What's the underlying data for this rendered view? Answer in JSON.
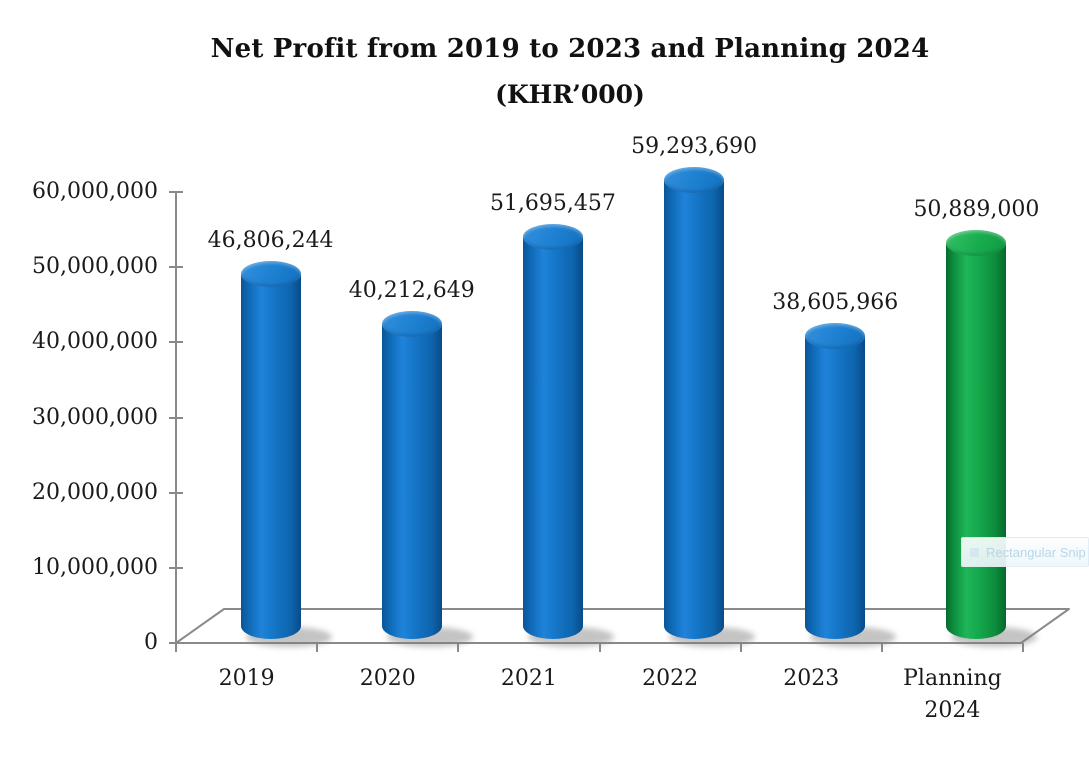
{
  "title": {
    "line1": "Net Profit from 2019 to 2023 and Planning 2024",
    "line2": "(KHR’000)"
  },
  "overlay": {
    "tooltip_label": "Rectangular Snip"
  },
  "colors": {
    "bar_blue": "#1272bf",
    "bar_green": "#13a348",
    "axis_gray": "#8a8a8a",
    "label_text": "#1a1a1a"
  },
  "chart_data": {
    "type": "bar",
    "subtype": "3d-cylinder",
    "title": "Net Profit from 2019 to 2023 and Planning 2024 (KHR’000)",
    "categories": [
      "2019",
      "2020",
      "2021",
      "2022",
      "2023",
      "Planning 2024"
    ],
    "values": [
      46806244,
      40212649,
      51695457,
      59293690,
      38605966,
      50889000
    ],
    "data_labels": [
      "46,806,244",
      "40,212,649",
      "51,695,457",
      "59,293,690",
      "38,605,966",
      "50,889,000"
    ],
    "bar_color_keys": [
      "blue",
      "blue",
      "blue",
      "blue",
      "blue",
      "green"
    ],
    "xlabel": "",
    "ylabel": "",
    "ylim": [
      0,
      60000000
    ],
    "ytick_interval": 10000000,
    "ytick_labels": [
      "0",
      "10,000,000",
      "20,000,000",
      "30,000,000",
      "40,000,000",
      "50,000,000",
      "60,000,000"
    ],
    "grid": false,
    "legend": false
  }
}
